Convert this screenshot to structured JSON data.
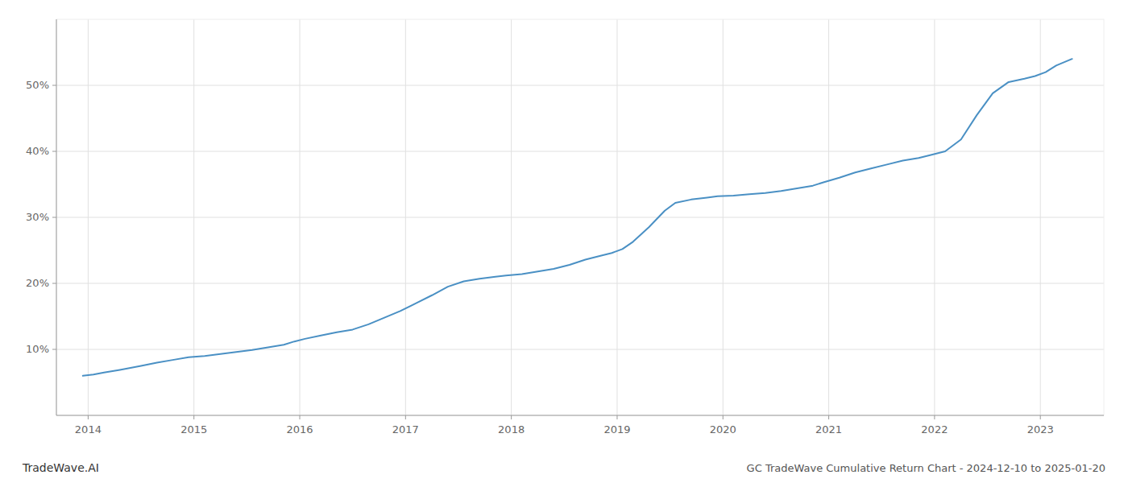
{
  "chart_data": {
    "type": "line",
    "title": "GC TradeWave Cumulative Return Chart - 2024-12-10 to 2025-01-20",
    "annotations": [
      "TradeWave.AI"
    ],
    "color": "#4a90c4",
    "grid": true,
    "xlim": [
      2013.7,
      2023.6
    ],
    "ylim": [
      0.0,
      0.6
    ],
    "xticks": [
      2014,
      2015,
      2016,
      2017,
      2018,
      2019,
      2020,
      2021,
      2022,
      2023
    ],
    "yticks": [
      {
        "value": 0.1,
        "label": "10%"
      },
      {
        "value": 0.2,
        "label": "20%"
      },
      {
        "value": 0.3,
        "label": "30%"
      },
      {
        "value": 0.4,
        "label": "40%"
      },
      {
        "value": 0.5,
        "label": "50%"
      }
    ],
    "x": [
      2013.95,
      2014.05,
      2014.15,
      2014.3,
      2014.5,
      2014.65,
      2014.8,
      2014.95,
      2015.1,
      2015.25,
      2015.4,
      2015.55,
      2015.7,
      2015.85,
      2015.95,
      2016.05,
      2016.2,
      2016.35,
      2016.5,
      2016.65,
      2016.8,
      2016.95,
      2017.1,
      2017.25,
      2017.4,
      2017.55,
      2017.7,
      2017.85,
      2017.95,
      2018.1,
      2018.25,
      2018.4,
      2018.55,
      2018.7,
      2018.85,
      2018.95,
      2019.05,
      2019.15,
      2019.3,
      2019.45,
      2019.55,
      2019.7,
      2019.85,
      2019.95,
      2020.1,
      2020.25,
      2020.4,
      2020.55,
      2020.7,
      2020.85,
      2020.95,
      2021.1,
      2021.25,
      2021.4,
      2021.55,
      2021.7,
      2021.85,
      2021.95,
      2022.1,
      2022.25,
      2022.4,
      2022.55,
      2022.7,
      2022.85,
      2022.95,
      2023.05,
      2023.15,
      2023.3
    ],
    "values": [
      0.06,
      0.062,
      0.065,
      0.069,
      0.075,
      0.08,
      0.084,
      0.088,
      0.09,
      0.093,
      0.096,
      0.099,
      0.103,
      0.107,
      0.112,
      0.116,
      0.121,
      0.126,
      0.13,
      0.138,
      0.148,
      0.158,
      0.17,
      0.182,
      0.195,
      0.203,
      0.207,
      0.21,
      0.212,
      0.214,
      0.218,
      0.222,
      0.228,
      0.236,
      0.242,
      0.246,
      0.252,
      0.263,
      0.285,
      0.31,
      0.322,
      0.327,
      0.33,
      0.332,
      0.333,
      0.335,
      0.337,
      0.34,
      0.344,
      0.348,
      0.353,
      0.36,
      0.368,
      0.374,
      0.38,
      0.386,
      0.39,
      0.394,
      0.4,
      0.418,
      0.455,
      0.488,
      0.505,
      0.51,
      0.514,
      0.52,
      0.53,
      0.54
    ]
  }
}
